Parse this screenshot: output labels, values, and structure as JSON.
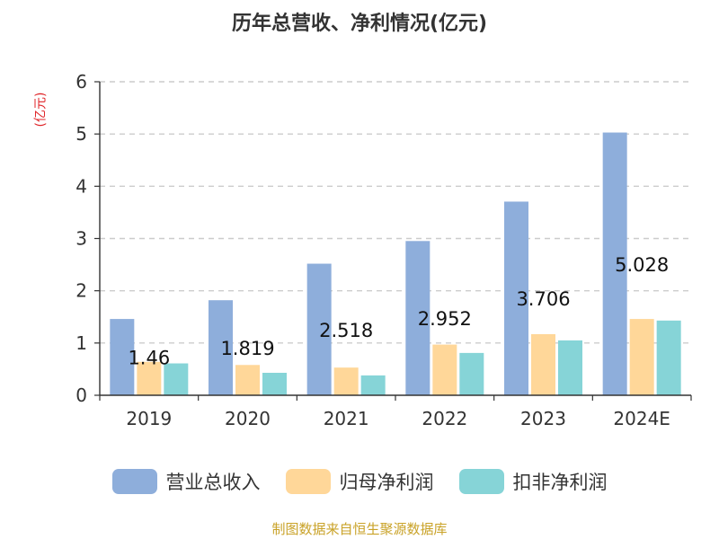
{
  "title": "历年总营收、净利情况(亿元)",
  "unit": "(亿元)",
  "source": "制图数据来自恒生聚源数据库",
  "colors": {
    "axis": "#333333",
    "grid": "#cccccc",
    "text": "#333333",
    "unit": "#e0262a",
    "source": "#c9a227"
  },
  "chart_data": {
    "type": "bar",
    "categories": [
      "2019",
      "2020",
      "2021",
      "2022",
      "2023",
      "2024E"
    ],
    "ylim": [
      0,
      6
    ],
    "yticks": [
      0,
      1,
      2,
      3,
      4,
      5,
      6
    ],
    "grid": true,
    "legend_position": "bottom",
    "series": [
      {
        "name": "营业总收入",
        "color": "#8eaedb",
        "values": [
          1.46,
          1.819,
          2.518,
          2.952,
          3.706,
          5.028
        ],
        "labels": [
          "1.46",
          "1.819",
          "2.518",
          "2.952",
          "3.706",
          "5.028"
        ]
      },
      {
        "name": "归母净利润",
        "color": "#ffd799",
        "values": [
          0.64,
          0.58,
          0.53,
          0.97,
          1.17,
          1.46
        ]
      },
      {
        "name": "扣非净利润",
        "color": "#86d4d7",
        "values": [
          0.61,
          0.43,
          0.38,
          0.81,
          1.05,
          1.43
        ]
      }
    ]
  }
}
